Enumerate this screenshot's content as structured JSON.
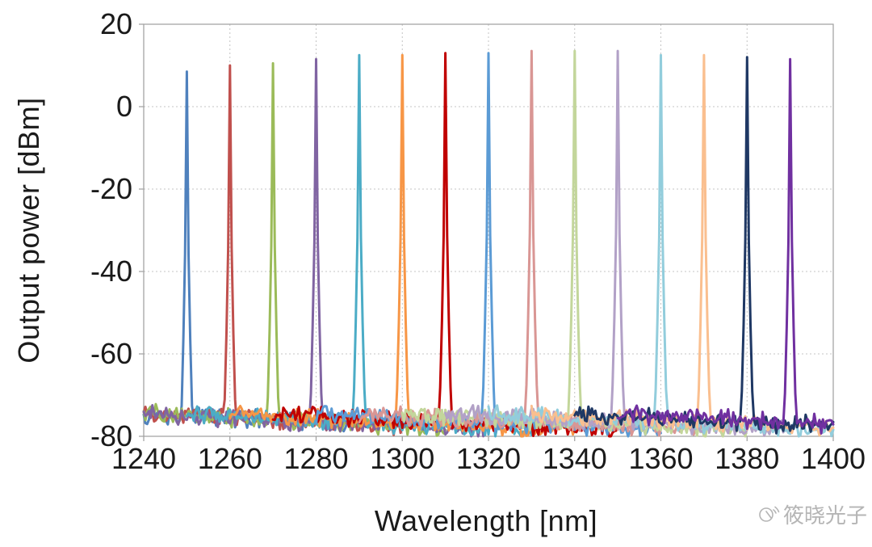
{
  "chart_data": {
    "type": "line",
    "title": "",
    "xlabel": "Wavelength [nm]",
    "ylabel": "Output power [dBm]",
    "xlim": [
      1240,
      1400
    ],
    "ylim": [
      -80,
      20
    ],
    "x_ticks": [
      1240,
      1260,
      1280,
      1300,
      1320,
      1340,
      1360,
      1380,
      1400
    ],
    "y_ticks": [
      20,
      0,
      -20,
      -40,
      -60,
      -80
    ],
    "grid": true,
    "legend": false,
    "description": "Superimposed optical spectra of a tunable laser: narrow lasing peaks every 10 nm from 1250 to 1390 nm, noise floor around -72 to -80 dBm",
    "noise": {
      "floor_dbm": -74.5,
      "jitter_db": 2.6,
      "slope_db_per_nm": -0.05,
      "window_nm": 40
    },
    "series": [
      {
        "name": "1250 nm",
        "peak_wavelength_nm": 1250,
        "peak_power_dbm": 8.5,
        "color": "#4F81BD"
      },
      {
        "name": "1260 nm",
        "peak_wavelength_nm": 1260,
        "peak_power_dbm": 10.0,
        "color": "#C0504D"
      },
      {
        "name": "1270 nm",
        "peak_wavelength_nm": 1270,
        "peak_power_dbm": 10.5,
        "color": "#9BBB59"
      },
      {
        "name": "1280 nm",
        "peak_wavelength_nm": 1280,
        "peak_power_dbm": 11.5,
        "color": "#8064A2"
      },
      {
        "name": "1290 nm",
        "peak_wavelength_nm": 1290,
        "peak_power_dbm": 12.5,
        "color": "#4BACC6"
      },
      {
        "name": "1300 nm",
        "peak_wavelength_nm": 1300,
        "peak_power_dbm": 12.5,
        "color": "#F79646"
      },
      {
        "name": "1310 nm",
        "peak_wavelength_nm": 1310,
        "peak_power_dbm": 13.0,
        "color": "#C00000"
      },
      {
        "name": "1320 nm",
        "peak_wavelength_nm": 1320,
        "peak_power_dbm": 13.0,
        "color": "#5B9BD5"
      },
      {
        "name": "1330 nm",
        "peak_wavelength_nm": 1330,
        "peak_power_dbm": 13.5,
        "color": "#D99694"
      },
      {
        "name": "1340 nm",
        "peak_wavelength_nm": 1340,
        "peak_power_dbm": 13.5,
        "color": "#C3D69B"
      },
      {
        "name": "1350 nm",
        "peak_wavelength_nm": 1350,
        "peak_power_dbm": 13.5,
        "color": "#B2A1C7"
      },
      {
        "name": "1360 nm",
        "peak_wavelength_nm": 1360,
        "peak_power_dbm": 12.5,
        "color": "#92CDDC"
      },
      {
        "name": "1370 nm",
        "peak_wavelength_nm": 1370,
        "peak_power_dbm": 12.5,
        "color": "#FABF8F"
      },
      {
        "name": "1380 nm",
        "peak_wavelength_nm": 1380,
        "peak_power_dbm": 12.0,
        "color": "#1F3864"
      },
      {
        "name": "1390 nm",
        "peak_wavelength_nm": 1390,
        "peak_power_dbm": 11.5,
        "color": "#7030A0"
      }
    ]
  },
  "style": {
    "grid_color": "#c4c4c4",
    "border_color": "#9e9e9e",
    "tick_label_color": "#1a1a1a",
    "watermark_color": "#b5b5b5"
  },
  "watermark": {
    "text": "筱晓光子",
    "icon": "megaphone-logo"
  }
}
